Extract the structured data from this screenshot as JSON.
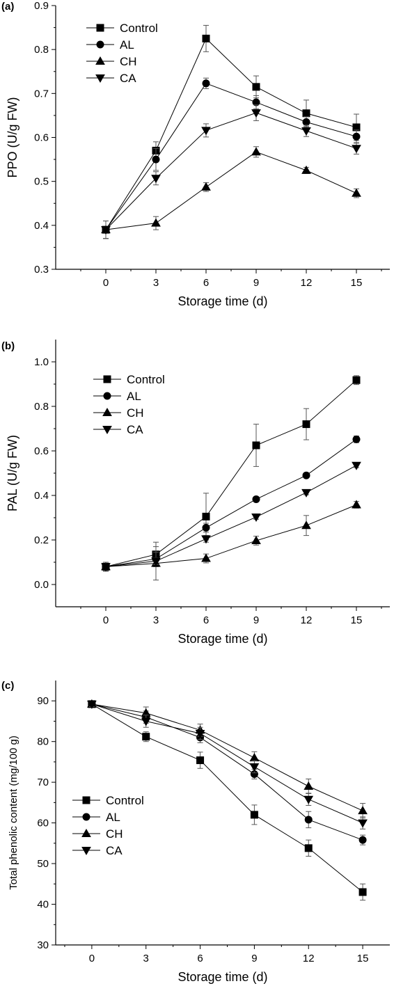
{
  "figure": {
    "panels": [
      {
        "label": "(a)",
        "legend_entries": [
          "Control",
          "AL",
          "CH",
          "CA"
        ]
      },
      {
        "label": "(b)",
        "legend_entries": [
          "Control",
          "AL",
          "CH",
          "CA"
        ]
      },
      {
        "label": "(c)",
        "legend_entries": [
          "Control",
          "AL",
          "CH",
          "CA"
        ]
      }
    ]
  },
  "chart_data": [
    {
      "type": "line",
      "panel_label": "(a)",
      "xlabel": "Storage time (d)",
      "ylabel": "PPO (U/g FW)",
      "x": [
        0,
        3,
        6,
        9,
        12,
        15
      ],
      "x_ticks": [
        "0",
        "3",
        "6",
        "9",
        "12",
        "15"
      ],
      "xlim": [
        -3,
        17
      ],
      "ylim": [
        0.3,
        0.9
      ],
      "y_ticks": [
        "0.3",
        "0.4",
        "0.5",
        "0.6",
        "0.7",
        "0.8",
        "0.9"
      ],
      "legend_position": "top-left",
      "series": [
        {
          "name": "Control",
          "marker": "square",
          "values": [
            0.39,
            0.57,
            0.825,
            0.715,
            0.655,
            0.623
          ],
          "errors": [
            0.02,
            0.02,
            0.03,
            0.025,
            0.03,
            0.03
          ]
        },
        {
          "name": "AL",
          "marker": "circle",
          "values": [
            0.39,
            0.55,
            0.723,
            0.68,
            0.635,
            0.602
          ],
          "errors": [
            0.02,
            0.025,
            0.012,
            0.015,
            0.012,
            0.015
          ]
        },
        {
          "name": "CH",
          "marker": "triangle-up",
          "values": [
            0.39,
            0.405,
            0.487,
            0.567,
            0.525,
            0.473
          ],
          "errors": [
            0.02,
            0.015,
            0.01,
            0.012,
            0.007,
            0.01
          ]
        },
        {
          "name": "CA",
          "marker": "triangle-down",
          "values": [
            0.39,
            0.507,
            0.616,
            0.656,
            0.615,
            0.575
          ],
          "errors": [
            0.02,
            0.015,
            0.015,
            0.018,
            0.013,
            0.013
          ]
        }
      ]
    },
    {
      "type": "line",
      "panel_label": "(b)",
      "xlabel": "Storage time (d)",
      "ylabel": "PAL (U/g FW)",
      "x": [
        0,
        3,
        6,
        9,
        12,
        15
      ],
      "x_ticks": [
        "0",
        "3",
        "6",
        "9",
        "12",
        "15"
      ],
      "xlim": [
        -3,
        17
      ],
      "ylim": [
        -0.1,
        1.1
      ],
      "y_ticks": [
        "0.0",
        "0.2",
        "0.4",
        "0.6",
        "0.8",
        "1.0"
      ],
      "legend_position": "top-left",
      "series": [
        {
          "name": "Control",
          "marker": "square",
          "values": [
            0.08,
            0.135,
            0.305,
            0.625,
            0.72,
            0.918
          ],
          "errors": [
            0.02,
            0.055,
            0.105,
            0.095,
            0.07,
            0.02
          ]
        },
        {
          "name": "AL",
          "marker": "circle",
          "values": [
            0.08,
            0.115,
            0.255,
            0.383,
            0.49,
            0.652
          ],
          "errors": [
            0.02,
            0.03,
            0.02,
            0.01,
            0.01,
            0.015
          ]
        },
        {
          "name": "CH",
          "marker": "triangle-up",
          "values": [
            0.08,
            0.095,
            0.117,
            0.197,
            0.265,
            0.358
          ],
          "errors": [
            0.02,
            0.075,
            0.02,
            0.02,
            0.045,
            0.015
          ]
        },
        {
          "name": "CA",
          "marker": "triangle-down",
          "values": [
            0.08,
            0.105,
            0.205,
            0.303,
            0.413,
            0.535
          ],
          "errors": [
            0.02,
            0.015,
            0.015,
            0.01,
            0.01,
            0.01
          ]
        }
      ]
    },
    {
      "type": "line",
      "panel_label": "(c)",
      "xlabel": "Storage time (d)",
      "ylabel": "Total phenolic content (mg/100 g)",
      "x": [
        0,
        3,
        6,
        9,
        12,
        15
      ],
      "x_ticks": [
        "0",
        "3",
        "6",
        "9",
        "12",
        "15"
      ],
      "xlim": [
        -2,
        16.5
      ],
      "ylim": [
        30,
        95
      ],
      "y_ticks": [
        "30",
        "40",
        "50",
        "60",
        "70",
        "80",
        "90"
      ],
      "legend_position": "bottom-left",
      "series": [
        {
          "name": "Control",
          "marker": "square",
          "values": [
            89.2,
            81.2,
            75.4,
            62.0,
            53.8,
            43.0
          ],
          "errors": [
            0.6,
            1.2,
            2.0,
            2.4,
            2.0,
            2.0
          ]
        },
        {
          "name": "AL",
          "marker": "circle",
          "values": [
            89.2,
            86.0,
            81.0,
            72.0,
            60.8,
            55.8
          ],
          "errors": [
            0.6,
            1.5,
            1.3,
            1.2,
            2.0,
            1.2
          ]
        },
        {
          "name": "CH",
          "marker": "triangle-up",
          "values": [
            89.2,
            87.0,
            82.8,
            76.0,
            69.0,
            63.0
          ],
          "errors": [
            0.6,
            1.5,
            1.5,
            1.5,
            1.8,
            1.8
          ]
        },
        {
          "name": "CA",
          "marker": "triangle-down",
          "values": [
            89.2,
            85.0,
            82.0,
            73.8,
            65.8,
            60.0
          ],
          "errors": [
            0.6,
            1.5,
            1.5,
            1.5,
            1.5,
            1.5
          ]
        }
      ]
    }
  ]
}
